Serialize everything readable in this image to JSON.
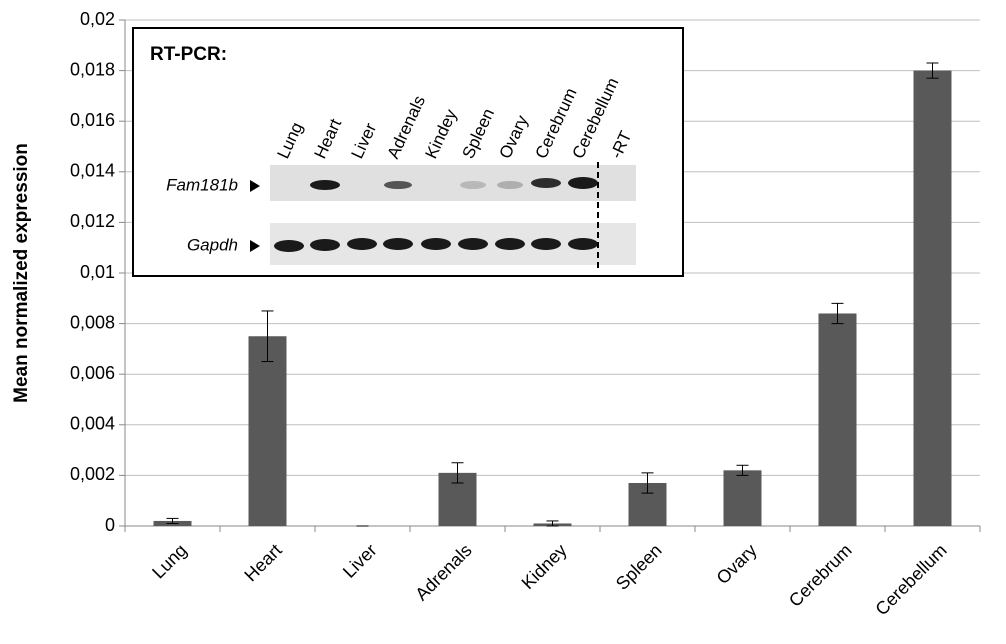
{
  "chart_data": {
    "type": "bar",
    "ylabel": "Mean normalized expression",
    "categories": [
      "Lung",
      "Heart",
      "Liver",
      "Adrenals",
      "Kidney",
      "Spleen",
      "Ovary",
      "Cerebrum",
      "Cerebellum"
    ],
    "values": [
      0.0002,
      0.0075,
      0,
      0.0021,
      0.0001,
      0.0017,
      0.0022,
      0.0084,
      0.018
    ],
    "errors": [
      0.0001,
      0.001,
      0,
      0.0004,
      0.0001,
      0.0004,
      0.0002,
      0.0004,
      0.0003
    ],
    "color": "#595959",
    "ylim": [
      0,
      0.02
    ],
    "yticks": [
      0,
      {
        "value": 0.002,
        "label": "0,002"
      },
      {
        "value": 0.004,
        "label": "0,004"
      },
      {
        "value": 0.006,
        "label": "0,006"
      },
      {
        "value": 0.008,
        "label": "0,008"
      },
      {
        "value": 0.01,
        "label": "0,01"
      },
      {
        "value": 0.012,
        "label": "0,012"
      },
      {
        "value": 0.014,
        "label": "0,014"
      },
      {
        "value": 0.016,
        "label": "0,016"
      },
      {
        "value": 0.018,
        "label": "0,018"
      },
      {
        "value": 0.02,
        "label": "0,02"
      }
    ],
    "grid": true,
    "inset": {
      "title": "RT-PCR:",
      "lanes": [
        "Lung",
        "Heart",
        "Liver",
        "Adrenals",
        "Kindey",
        "Spleen",
        "Ovary",
        "Cerebrum",
        "Cerebellum",
        "-RT"
      ],
      "rows": [
        "Fam181b",
        "Gapdh"
      ]
    }
  }
}
